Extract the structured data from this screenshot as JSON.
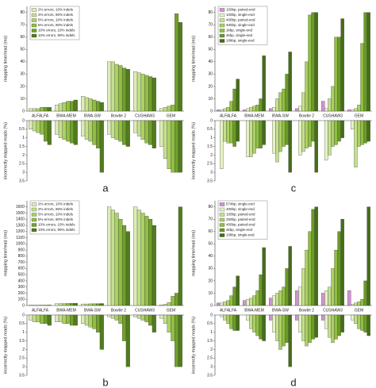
{
  "chart_data": [
    {
      "type": "bar",
      "label": "a",
      "ylabel": "mapping time/read (ms)",
      "y2label": "incorrectly mapped reads (%)",
      "categories": [
        "ALFALFA",
        "BWA-MEM",
        "BWA-SW",
        "Bowtie 2",
        "CUSHAW3",
        "GEM"
      ],
      "ylim": [
        0,
        85
      ],
      "yticks": [
        0,
        10,
        20,
        30,
        40,
        50,
        60,
        70,
        80
      ],
      "y2lim": [
        0,
        3.5
      ],
      "y2ticks": [
        0,
        0.5,
        1,
        1.5,
        2,
        2.5,
        3,
        3.5
      ],
      "series": [
        {
          "name": "2% errors, 10% indels",
          "color": "#dcecb4",
          "values": [
            2,
            5,
            12,
            40,
            32,
            2
          ],
          "values_bottom": [
            0.5,
            0.8,
            0.9,
            0.8,
            0.7,
            1.5
          ]
        },
        {
          "name": "2% errors, 90% indels",
          "color": "#c5e08e",
          "values": [
            2,
            6,
            11,
            40,
            31,
            3
          ],
          "values_bottom": [
            0.6,
            1.0,
            1.1,
            1.0,
            0.9,
            2.2
          ]
        },
        {
          "name": "5% errors, 10% indels",
          "color": "#abd164",
          "values": [
            2,
            7,
            10,
            38,
            30,
            4
          ],
          "values_bottom": [
            0.7,
            1.1,
            1.2,
            1.1,
            1.1,
            2.8
          ]
        },
        {
          "name": "5% errors, 90% indels",
          "color": "#90bf40",
          "values": [
            3,
            8,
            9,
            37,
            29,
            5
          ],
          "values_bottom": [
            0.8,
            1.2,
            1.4,
            1.2,
            1.3,
            3.0
          ]
        },
        {
          "name": "10% errors, 10% indels",
          "color": "#72a02c",
          "values": [
            3,
            8,
            8,
            35,
            28,
            79
          ],
          "values_bottom": [
            1.2,
            1.3,
            1.6,
            1.4,
            1.4,
            3.0
          ]
        },
        {
          "name": "10% errors, 90% indels",
          "color": "#517c1d",
          "values": [
            3,
            9,
            7,
            34,
            27,
            72
          ],
          "values_bottom": [
            1.4,
            1.4,
            3.0,
            1.5,
            1.6,
            3.0
          ]
        }
      ]
    },
    {
      "type": "bar",
      "label": "b",
      "ylabel": "mapping time/read (ms)",
      "y2label": "incorrectly mapped reads (%)",
      "categories": [
        "ALFALFA",
        "BWA-MEM",
        "BWA-SW",
        "Bowtie 2",
        "CUSHAW3",
        "GEM"
      ],
      "ylim": [
        0,
        1700
      ],
      "yticks": [
        0,
        100,
        200,
        300,
        400,
        500,
        600,
        700,
        800,
        900,
        1000,
        1100,
        1200,
        1300,
        1400,
        1500,
        1600
      ],
      "y2lim": [
        0,
        3.5
      ],
      "y2ticks": [
        0,
        0.5,
        1,
        1.5,
        2,
        2.5,
        3,
        3.5
      ],
      "series": [
        {
          "name": "2% errors, 10% indels",
          "color": "#dcecb4",
          "values": [
            5,
            30,
            25,
            1600,
            1600,
            10
          ],
          "values_bottom": [
            0.3,
            0.4,
            0.5,
            0.1,
            0.1,
            0.2
          ]
        },
        {
          "name": "2% errors, 90% indels",
          "color": "#c5e08e",
          "values": [
            5,
            30,
            25,
            1550,
            1550,
            20
          ],
          "values_bottom": [
            0.4,
            0.4,
            0.6,
            0.2,
            0.2,
            0.5
          ]
        },
        {
          "name": "5% errors, 10% indels",
          "color": "#abd164",
          "values": [
            5,
            32,
            27,
            1500,
            1500,
            50
          ],
          "values_bottom": [
            0.4,
            0.5,
            0.7,
            0.3,
            0.3,
            1.0
          ]
        },
        {
          "name": "5% errors, 90% indels",
          "color": "#90bf40",
          "values": [
            6,
            33,
            28,
            1400,
            1450,
            150
          ],
          "values_bottom": [
            0.5,
            0.5,
            0.8,
            0.5,
            0.4,
            1.5
          ]
        },
        {
          "name": "10% errors, 10% indels",
          "color": "#72a02c",
          "values": [
            6,
            35,
            30,
            1300,
            1400,
            200
          ],
          "values_bottom": [
            0.5,
            0.6,
            1.0,
            1.5,
            0.6,
            3.0
          ]
        },
        {
          "name": "10% errors, 90% indels",
          "color": "#517c1d",
          "values": [
            7,
            36,
            32,
            1200,
            1300,
            1600
          ],
          "values_bottom": [
            0.6,
            0.6,
            2.0,
            3.0,
            1.0,
            3.0
          ]
        }
      ]
    },
    {
      "type": "bar",
      "label": "c",
      "ylabel": "mapping time/read (ms)",
      "y2label": "incorrectly mapped reads (%)",
      "categories": [
        "ALFALFA",
        "BWA-MEM",
        "BWA-SW",
        "Bowtie 2",
        "CUSHAW3",
        "GEM"
      ],
      "ylim": [
        0,
        85
      ],
      "yticks": [
        0,
        10,
        20,
        30,
        40,
        50,
        60,
        70,
        80
      ],
      "y2lim": [
        0,
        3.5
      ],
      "y2ticks": [
        0,
        0.5,
        1,
        1.5,
        2,
        2.5,
        3,
        3.5
      ],
      "series": [
        {
          "name": "100bp, paired-end",
          "color": "#d48fd6",
          "values": [
            1,
            1,
            2,
            2,
            8,
            1
          ],
          "values_bottom": [
            0,
            0,
            0,
            0,
            0,
            0
          ]
        },
        {
          "name": "100bp, single-end",
          "color": "#e6f2c6",
          "values": [
            1,
            2,
            3,
            4,
            2,
            1
          ],
          "values_bottom": [
            2.8,
            2.1,
            1.9,
            2.0,
            2.3,
            0.5
          ]
        },
        {
          "name": "400bp, paired-end",
          "color": "#c5e08e",
          "values": [
            2,
            3,
            10,
            15,
            10,
            2
          ],
          "values_bottom": [
            1.2,
            2.1,
            2.4,
            1.8,
            2.0,
            2.7
          ]
        },
        {
          "name": "400bp, single-end",
          "color": "#abd164",
          "values": [
            3,
            4,
            15,
            40,
            20,
            5
          ],
          "values_bottom": [
            1.3,
            1.9,
            1.8,
            1.6,
            1.5,
            1.5
          ]
        },
        {
          "name": "1kbp, single-end",
          "color": "#90bf40",
          "values": [
            8,
            5,
            18,
            78,
            60,
            55
          ],
          "values_bottom": [
            1.3,
            1.6,
            1.5,
            1.5,
            1.4,
            1.4
          ]
        },
        {
          "name": "4kbp, single-end",
          "color": "#6a9a28",
          "values": [
            18,
            10,
            30,
            80,
            60,
            80
          ],
          "values_bottom": [
            1.5,
            1.6,
            1.4,
            1.2,
            1.2,
            1.3
          ]
        },
        {
          "name": "10kbp, single-end",
          "color": "#456d18",
          "values": [
            26,
            45,
            48,
            80,
            75,
            80
          ],
          "values_bottom": [
            1.2,
            1.4,
            3.0,
            3.0,
            1.0,
            1.2
          ]
        }
      ]
    },
    {
      "type": "bar",
      "label": "d",
      "ylabel": "mapping time/read (ms)",
      "y2label": "incorrectly mapped reads (%)",
      "categories": [
        "ALFALFA",
        "BWA-MEM",
        "BWA-SW",
        "Bowtie 2",
        "CUSHAW3",
        "GEM"
      ],
      "ylim": [
        0,
        85
      ],
      "yticks": [
        0,
        10,
        20,
        30,
        40,
        50,
        60,
        70,
        80
      ],
      "y2lim": [
        0,
        3.5
      ],
      "y2ticks": [
        0,
        0.5,
        1,
        1.5,
        2,
        2.5,
        3,
        3.5
      ],
      "series": [
        {
          "name": "574bp, single-end",
          "color": "#d48fd6",
          "values": [
            2,
            4,
            6,
            12,
            10,
            12
          ],
          "values_bottom": [
            0,
            0,
            0.3,
            0.3,
            0.3,
            0
          ]
        },
        {
          "name": "400bp, single-end",
          "color": "#e6f2c6",
          "values": [
            2,
            5,
            8,
            15,
            12,
            1
          ],
          "values_bottom": [
            0.1,
            0.3,
            1.0,
            1.0,
            0.8,
            0.3
          ]
        },
        {
          "name": "100bp, paired-end",
          "color": "#c5e08e",
          "values": [
            3,
            6,
            10,
            30,
            15,
            2
          ],
          "values_bottom": [
            0.3,
            0.8,
            1.5,
            1.5,
            1.3,
            0.5
          ]
        },
        {
          "name": "250bp, paired-end",
          "color": "#abd164",
          "values": [
            4,
            8,
            12,
            45,
            30,
            3
          ],
          "values_bottom": [
            0.5,
            1.0,
            2.0,
            1.8,
            1.6,
            0.8
          ]
        },
        {
          "name": "400bp, paired-end",
          "color": "#90bf40",
          "values": [
            8,
            12,
            15,
            60,
            45,
            5
          ],
          "values_bottom": [
            0.8,
            1.2,
            1.8,
            1.6,
            1.4,
            0.9
          ]
        },
        {
          "name": "4kbp, single-end",
          "color": "#6a9a28",
          "values": [
            15,
            25,
            30,
            78,
            60,
            20
          ],
          "values_bottom": [
            0.9,
            1.4,
            1.6,
            1.4,
            1.2,
            1.0
          ]
        },
        {
          "name": "10kbp, single-end",
          "color": "#456d18",
          "values": [
            24,
            47,
            48,
            80,
            70,
            80
          ],
          "values_bottom": [
            0.9,
            1.5,
            3.0,
            1.3,
            1.0,
            1.2
          ]
        }
      ]
    }
  ]
}
